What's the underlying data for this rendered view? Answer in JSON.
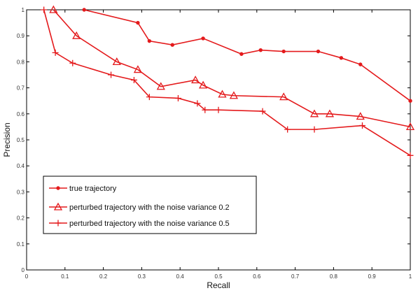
{
  "chart_data": {
    "type": "line",
    "title": "",
    "xlabel": "Recall",
    "ylabel": "Precision",
    "xlim": [
      0,
      1
    ],
    "ylim": [
      0,
      1
    ],
    "xticks": [
      0,
      0.1,
      0.2,
      0.3,
      0.4,
      0.5,
      0.6,
      0.7,
      0.8,
      0.9,
      1
    ],
    "xtick_labels": [
      "0",
      "0.1",
      "0.2",
      "0.3",
      "0.4",
      "0.5",
      "0.6",
      "0.7",
      "0.8",
      "0.9",
      "1"
    ],
    "yticks": [
      0,
      0.1,
      0.2,
      0.3,
      0.4,
      0.5,
      0.6,
      0.7,
      0.8,
      0.9,
      1
    ],
    "ytick_labels": [
      "0",
      "0.1",
      "0.2",
      "0.3",
      "0.4",
      "0.5",
      "0.6",
      "0.7",
      "0.8",
      "0.9",
      "1"
    ],
    "grid": false,
    "legend_position": "bottom-left",
    "color": "#e41a1c",
    "series": [
      {
        "name": "true trajectory",
        "marker": "dot",
        "x": [
          0.15,
          0.29,
          0.32,
          0.38,
          0.46,
          0.56,
          0.61,
          0.67,
          0.76,
          0.82,
          0.87,
          1.0
        ],
        "y": [
          1.0,
          0.95,
          0.88,
          0.865,
          0.89,
          0.83,
          0.845,
          0.84,
          0.84,
          0.815,
          0.79,
          0.65
        ]
      },
      {
        "name": "perturbed trajectory with the noise variance 0.2",
        "marker": "triangle",
        "x": [
          0.07,
          0.13,
          0.235,
          0.29,
          0.35,
          0.44,
          0.46,
          0.51,
          0.54,
          0.67,
          0.75,
          0.79,
          0.87,
          1.0
        ],
        "y": [
          1.0,
          0.9,
          0.8,
          0.77,
          0.705,
          0.73,
          0.71,
          0.675,
          0.67,
          0.665,
          0.6,
          0.6,
          0.59,
          0.55
        ]
      },
      {
        "name": "perturbed trajectory with the noise variance 0.5",
        "marker": "plus",
        "x": [
          0.045,
          0.075,
          0.12,
          0.22,
          0.28,
          0.32,
          0.395,
          0.445,
          0.465,
          0.5,
          0.615,
          0.68,
          0.75,
          0.875,
          1.0
        ],
        "y": [
          1.0,
          0.835,
          0.795,
          0.75,
          0.73,
          0.665,
          0.66,
          0.64,
          0.615,
          0.615,
          0.61,
          0.54,
          0.54,
          0.555,
          0.44
        ]
      }
    ]
  }
}
